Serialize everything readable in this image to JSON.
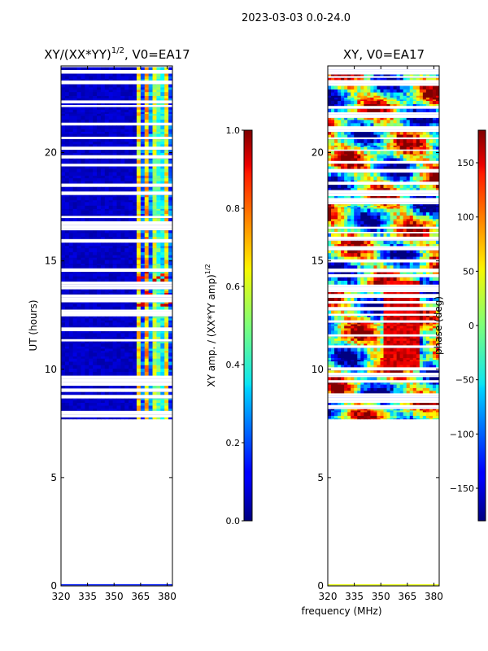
{
  "suptitle": "2023-03-03 0.0-24.0",
  "xlabel_shared": "frequency (MHz)",
  "chart_data": [
    {
      "type": "heatmap",
      "title_main": "XY/(XX*YY)",
      "title_sup": "1/2",
      "title_rest": ", V0=EA17",
      "ylabel": "UT (hours)",
      "xlabel": "",
      "xlim": [
        320,
        383
      ],
      "ylim": [
        0,
        24
      ],
      "xticks": [
        "320",
        "335",
        "350",
        "365",
        "380"
      ],
      "xtick_values": [
        320,
        335,
        350,
        365,
        380
      ],
      "yticks": [
        "0",
        "5",
        "10",
        "15",
        "20"
      ],
      "ytick_values": [
        0,
        5,
        10,
        15,
        20
      ],
      "data_ut_range": [
        7.7,
        24
      ],
      "colorbar": {
        "label_main": "XY amp. / (XX*YY amp)",
        "label_sup": "1/2",
        "range": [
          0.0,
          1.0
        ],
        "ticks": [
          "0.0",
          "0.2",
          "0.4",
          "0.6",
          "0.8",
          "1.0"
        ],
        "tick_values": [
          0,
          0.2,
          0.4,
          0.6,
          0.8,
          1.0
        ],
        "colormap": "jet"
      }
    },
    {
      "type": "heatmap",
      "title_main": "XY, V0=EA17",
      "ylabel": "",
      "xlabel": "frequency (MHz)",
      "xlim": [
        320,
        383
      ],
      "ylim": [
        0,
        24
      ],
      "xticks": [
        "320",
        "335",
        "350",
        "365",
        "380"
      ],
      "xtick_values": [
        320,
        335,
        350,
        365,
        380
      ],
      "yticks": [
        "0",
        "5",
        "10",
        "15",
        "20"
      ],
      "ytick_values": [
        0,
        5,
        10,
        15,
        20
      ],
      "data_ut_range": [
        7.7,
        24
      ],
      "colorbar": {
        "label_main": "phase (deg)",
        "range": [
          -180,
          180
        ],
        "ticks": [
          "−150",
          "−100",
          "−50",
          "0",
          "50",
          "100",
          "150"
        ],
        "tick_values": [
          -150,
          -100,
          -50,
          0,
          50,
          100,
          150
        ],
        "colormap": "jet"
      }
    }
  ]
}
